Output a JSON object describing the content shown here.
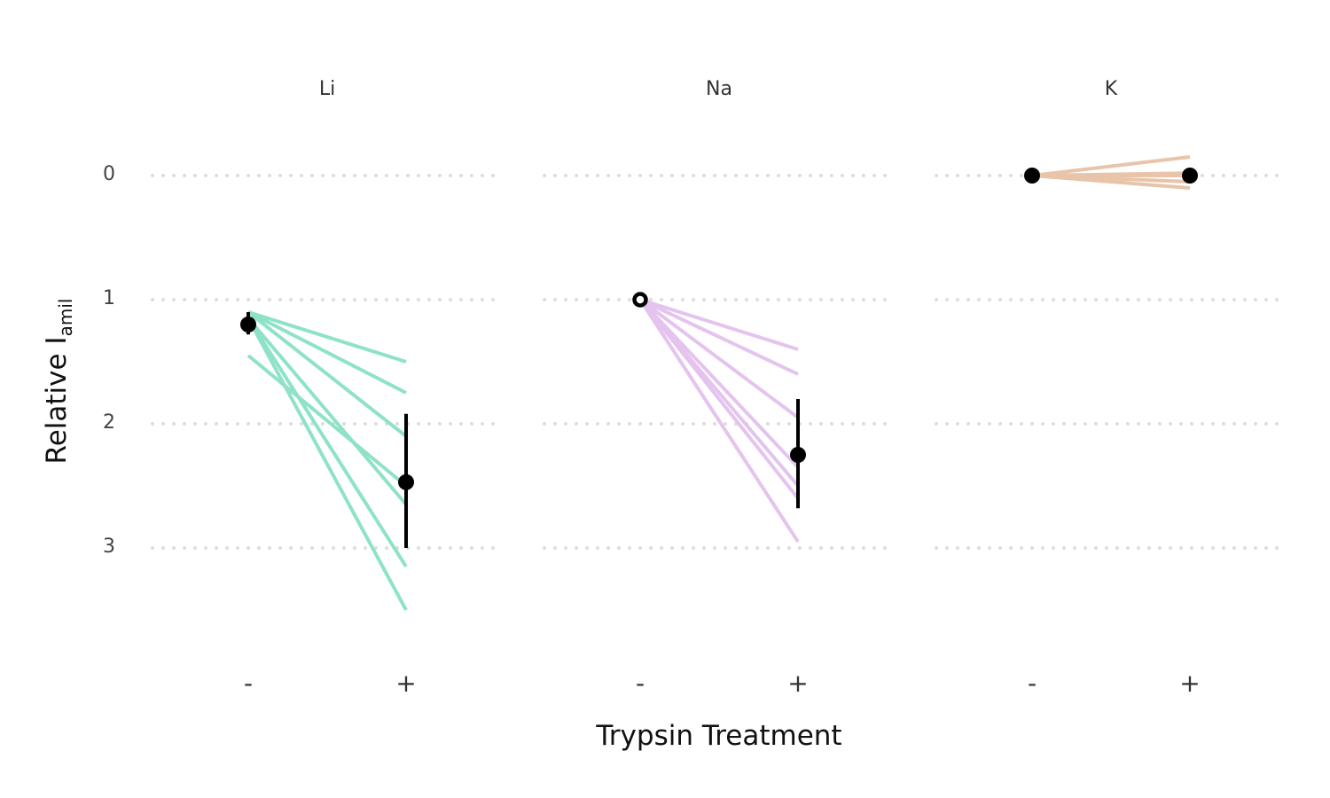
{
  "chart_data": {
    "type": "line",
    "xlabel": "Trypsin Treatment",
    "ylabel": {
      "main": "Relative I",
      "subscript": "amil"
    },
    "y_reversed": true,
    "yticks": [
      "0",
      "1",
      "2",
      "3"
    ],
    "ylim": [
      -0.35,
      3.7
    ],
    "grid": "horizontal dotted",
    "x_categories": [
      "-",
      "+"
    ],
    "facets": [
      {
        "name": "Li",
        "color": "#8ee2c8",
        "lines": [
          [
            1.1,
            1.5
          ],
          [
            1.1,
            1.75
          ],
          [
            1.1,
            2.1
          ],
          [
            1.15,
            2.65
          ],
          [
            1.15,
            3.15
          ],
          [
            1.15,
            3.5
          ],
          [
            1.45,
            2.5
          ]
        ],
        "mean": [
          1.2,
          2.47
        ],
        "error": [
          [
            1.1,
            1.28
          ],
          [
            1.92,
            3.0
          ]
        ],
        "minus_point_style": "filled"
      },
      {
        "name": "Na",
        "color": "#e4c4ee",
        "lines": [
          [
            1.0,
            1.4
          ],
          [
            1.0,
            1.6
          ],
          [
            1.0,
            1.95
          ],
          [
            1.0,
            2.5
          ],
          [
            1.0,
            2.6
          ],
          [
            1.0,
            2.95
          ],
          [
            1.0,
            2.35
          ]
        ],
        "mean": [
          1.0,
          2.25
        ],
        "error": [
          [
            1.0,
            1.0
          ],
          [
            1.8,
            2.68
          ]
        ],
        "minus_point_style": "open"
      },
      {
        "name": "K",
        "color": "#e8c4aa",
        "lines": [
          [
            0.0,
            -0.15
          ],
          [
            0.0,
            0.0
          ],
          [
            0.0,
            0.05
          ],
          [
            0.0,
            0.1
          ],
          [
            0.0,
            -0.02
          ]
        ],
        "mean": [
          0.0,
          0.0
        ],
        "error": [
          [
            0.0,
            0.0
          ],
          [
            0.0,
            0.0
          ]
        ],
        "minus_point_style": "filled"
      }
    ]
  }
}
